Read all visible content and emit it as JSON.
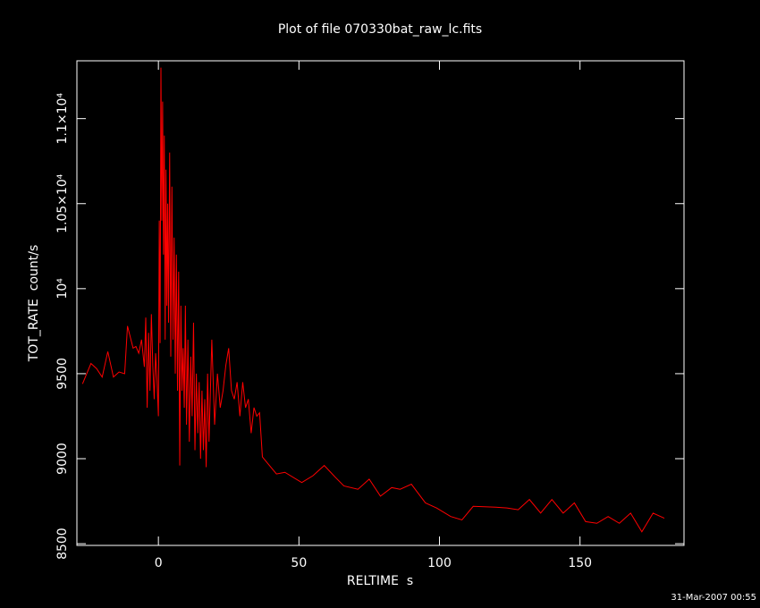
{
  "chart_data": {
    "type": "line",
    "title": "Plot of file 070330bat_raw_lc.fits",
    "x_label": "RELTIME  s",
    "y_label": "TOT_RATE  count/s",
    "timestamp": "31-Mar-2007 00:55",
    "xlim": [
      -29,
      187
    ],
    "xticks": [
      0,
      50,
      100,
      150
    ],
    "ylim": [
      8490,
      11340
    ],
    "yticks": [
      8500,
      9000,
      9500,
      {
        "value": 10000,
        "label": "10⁴"
      },
      {
        "value": 10500,
        "label": "1.05×10⁴"
      },
      {
        "value": 11000,
        "label": "1.1×10⁴"
      }
    ],
    "x": [
      -27,
      -24,
      -22,
      -20,
      -18,
      -16,
      -14,
      -12,
      -11,
      -9,
      -8,
      -7,
      -6,
      -5,
      -4.5,
      -4,
      -3.5,
      -3,
      -2.5,
      -2,
      -1.5,
      -1,
      -0.5,
      0,
      0.3,
      0.6,
      0.9,
      1.2,
      1.5,
      1.8,
      2.1,
      2.4,
      2.7,
      3,
      3.3,
      3.6,
      4,
      4.4,
      4.8,
      5.2,
      5.6,
      6,
      6.4,
      6.8,
      7.2,
      7.6,
      8,
      8.4,
      8.8,
      9.2,
      9.6,
      10,
      10.5,
      11,
      11.5,
      12,
      12.5,
      13,
      13.5,
      14,
      14.5,
      15,
      15.5,
      16,
      16.5,
      17,
      17.5,
      18,
      19,
      20,
      21,
      22,
      23,
      24,
      25,
      26,
      27,
      28,
      29,
      30,
      31,
      32,
      33,
      34,
      35,
      36,
      37,
      39,
      42,
      45,
      51,
      55,
      59,
      63,
      66,
      71,
      75,
      79,
      83,
      86,
      90,
      95,
      99,
      104,
      108,
      112,
      120,
      124,
      128,
      132,
      136,
      140,
      144,
      148,
      152,
      156,
      160,
      164,
      168,
      172,
      176,
      180
    ],
    "series": [
      {
        "color": "#ff0000",
        "values": [
          9440,
          9560,
          9530,
          9480,
          9630,
          9480,
          9510,
          9500,
          9780,
          9650,
          9660,
          9620,
          9700,
          9540,
          9830,
          9300,
          9740,
          9400,
          9850,
          9550,
          9350,
          9620,
          9460,
          9250,
          10400,
          9680,
          11300,
          10400,
          11100,
          10200,
          10900,
          9700,
          10700,
          9900,
          10500,
          9800,
          10800,
          9600,
          10600,
          9700,
          10300,
          9500,
          10200,
          9400,
          10100,
          8960,
          9900,
          9400,
          9650,
          9300,
          9900,
          9200,
          9700,
          9100,
          9600,
          9250,
          9800,
          9050,
          9500,
          9150,
          9450,
          9000,
          9400,
          9050,
          9350,
          8950,
          9500,
          9100,
          9700,
          9200,
          9500,
          9300,
          9400,
          9550,
          9650,
          9400,
          9350,
          9450,
          9250,
          9450,
          9300,
          9350,
          9150,
          9300,
          9250,
          9270,
          9010,
          8970,
          8910,
          8920,
          8860,
          8900,
          8960,
          8890,
          8840,
          8820,
          8880,
          8780,
          8830,
          8820,
          8850,
          8740,
          8710,
          8660,
          8640,
          8720,
          8715,
          8710,
          8700,
          8760,
          8680,
          8760,
          8680,
          8740,
          8630,
          8620,
          8660,
          8620,
          8680,
          8570,
          8680,
          8650
        ]
      }
    ]
  }
}
